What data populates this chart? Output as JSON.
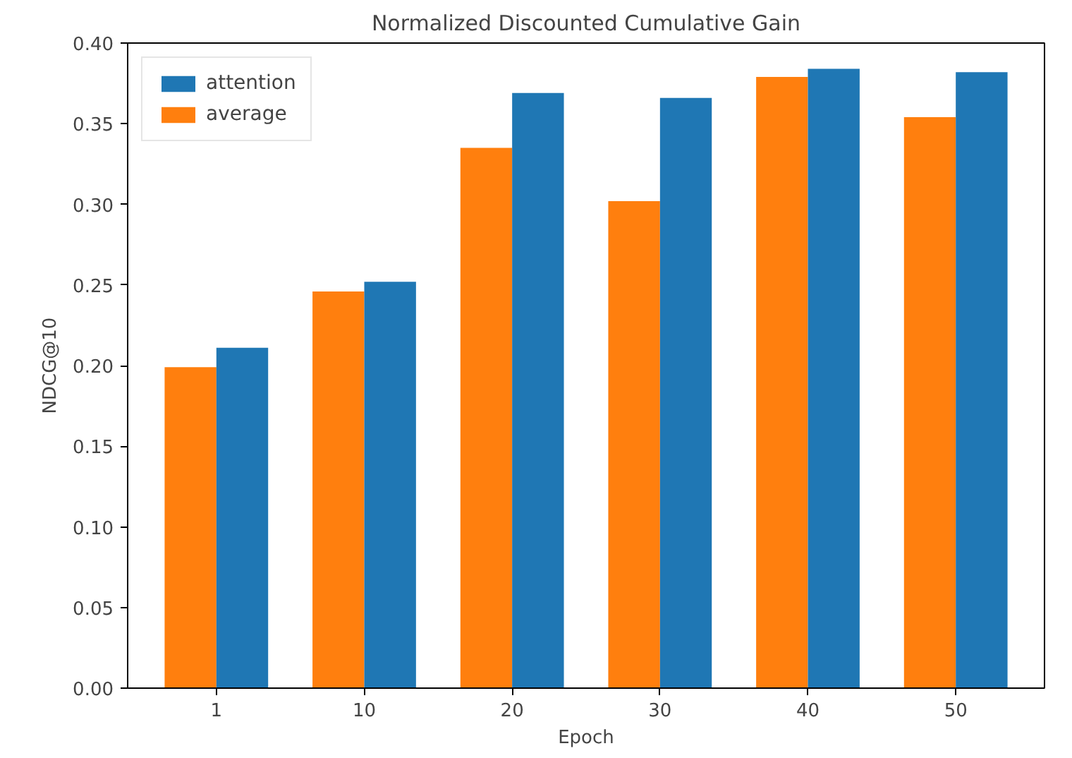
{
  "chart_data": {
    "type": "bar",
    "title": "Normalized Discounted Cumulative Gain",
    "xlabel": "Epoch",
    "ylabel": "NDCG@10",
    "categories": [
      "1",
      "10",
      "20",
      "30",
      "40",
      "50"
    ],
    "series": [
      {
        "name": "average",
        "color": "#ff7f0e",
        "values": [
          0.199,
          0.246,
          0.335,
          0.302,
          0.379,
          0.354
        ]
      },
      {
        "name": "attention",
        "color": "#1f77b4",
        "values": [
          0.211,
          0.252,
          0.369,
          0.366,
          0.384,
          0.382
        ]
      }
    ],
    "ylim": [
      0,
      0.4
    ],
    "yticks": [
      {
        "value": 0,
        "label": "0.00"
      },
      {
        "value": 0.05,
        "label": "0.05"
      },
      {
        "value": 0.1,
        "label": "0.10"
      },
      {
        "value": 0.15,
        "label": "0.15"
      },
      {
        "value": 0.2,
        "label": "0.20"
      },
      {
        "value": 0.25,
        "label": "0.25"
      },
      {
        "value": 0.3,
        "label": "0.30"
      },
      {
        "value": 0.35,
        "label": "0.35"
      },
      {
        "value": 0.4,
        "label": "0.40"
      }
    ],
    "legend": "top left",
    "grid": false
  }
}
